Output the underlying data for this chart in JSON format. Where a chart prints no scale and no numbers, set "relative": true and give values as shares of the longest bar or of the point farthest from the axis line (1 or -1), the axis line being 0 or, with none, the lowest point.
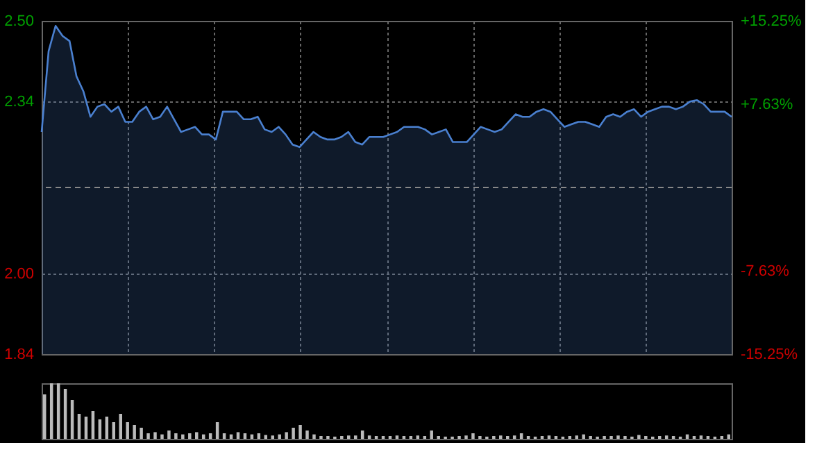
{
  "chart_data": [
    {
      "type": "area",
      "categories": [
        null,
        null,
        null,
        null,
        null,
        null,
        null,
        null,
        null,
        null,
        null,
        null,
        null,
        null,
        null,
        null,
        null,
        null,
        null,
        null,
        null,
        null,
        null,
        null,
        null,
        null,
        null,
        null,
        null,
        null,
        null,
        null,
        null,
        null,
        null,
        null,
        null,
        null,
        null,
        null,
        null,
        null,
        null,
        null,
        null,
        null,
        null,
        null,
        null,
        null,
        null,
        null,
        null,
        null,
        null,
        null,
        null,
        null,
        null,
        null,
        null,
        null,
        null,
        null,
        null,
        null,
        null,
        null,
        null,
        null,
        null,
        null,
        null,
        null,
        null,
        null,
        null,
        null,
        null,
        null,
        null,
        null,
        null,
        null,
        null,
        null,
        null,
        null,
        null,
        null,
        null,
        null,
        null,
        null,
        null,
        null,
        null,
        null,
        null,
        null
      ],
      "series": [
        {
          "color": "#4a80d0",
          "values": [
            2.28,
            2.44,
            2.49,
            2.47,
            2.46,
            2.39,
            2.36,
            2.31,
            2.33,
            2.335,
            2.32,
            2.33,
            2.3,
            2.3,
            2.32,
            2.33,
            2.305,
            2.31,
            2.33,
            2.305,
            2.28,
            2.285,
            2.29,
            2.275,
            2.275,
            2.265,
            2.32,
            2.32,
            2.32,
            2.305,
            2.305,
            2.31,
            2.285,
            2.28,
            2.29,
            2.275,
            2.255,
            2.25,
            2.265,
            2.28,
            2.27,
            2.265,
            2.265,
            2.27,
            2.28,
            2.26,
            2.255,
            2.27,
            2.27,
            2.27,
            2.275,
            2.28,
            2.29,
            2.29,
            2.29,
            2.285,
            2.275,
            2.28,
            2.285,
            2.26,
            2.26,
            2.26,
            2.275,
            2.29,
            2.285,
            2.28,
            2.285,
            2.3,
            2.315,
            2.31,
            2.31,
            2.32,
            2.325,
            2.32,
            2.305,
            2.29,
            2.295,
            2.3,
            2.3,
            2.295,
            2.29,
            2.31,
            2.315,
            2.31,
            2.32,
            2.325,
            2.31,
            2.32,
            2.325,
            2.33,
            2.33,
            2.325,
            2.33,
            2.34,
            2.343,
            2.335,
            2.32,
            2.32,
            2.32,
            2.31
          ]
        }
      ],
      "ylim": [
        1.84,
        2.5
      ],
      "yticks": [
        {
          "value": 1.84,
          "label": "1.84"
        },
        {
          "value": 2.0,
          "label": "2.00"
        },
        {
          "value": 2.34,
          "label": "2.34"
        },
        {
          "value": 2.5,
          "label": "2.50"
        }
      ],
      "y2lim": [
        -15.25,
        15.25
      ],
      "y2ticks": [
        {
          "value": -15.25,
          "label": "-15.25%"
        },
        {
          "value": -7.63,
          "label": "-7.63%"
        },
        {
          "value": 7.63,
          "label": "+7.63%"
        },
        {
          "value": 15.25,
          "label": "+15.25%"
        }
      ],
      "ref_lines": [
        {
          "axis": "y2",
          "value": 0,
          "line_style": "dashed",
          "color": "#888888"
        }
      ],
      "grid": true,
      "tick_labels": "y"
    },
    {
      "type": "bar",
      "relative": true,
      "categories": [
        null,
        null,
        null,
        null,
        null,
        null,
        null,
        null,
        null,
        null,
        null,
        null,
        null,
        null,
        null,
        null,
        null,
        null,
        null,
        null,
        null,
        null,
        null,
        null,
        null,
        null,
        null,
        null,
        null,
        null,
        null,
        null,
        null,
        null,
        null,
        null,
        null,
        null,
        null,
        null,
        null,
        null,
        null,
        null,
        null,
        null,
        null,
        null,
        null,
        null,
        null,
        null,
        null,
        null,
        null,
        null,
        null,
        null,
        null,
        null,
        null,
        null,
        null,
        null,
        null,
        null,
        null,
        null,
        null,
        null,
        null,
        null,
        null,
        null,
        null,
        null,
        null,
        null,
        null,
        null,
        null,
        null,
        null,
        null,
        null,
        null,
        null,
        null,
        null,
        null,
        null,
        null,
        null,
        null,
        null,
        null,
        null,
        null,
        null,
        null
      ],
      "series": [
        {
          "color": "#bbbbbb",
          "values": [
            0.8,
            1.0,
            1.0,
            0.9,
            0.7,
            0.45,
            0.4,
            0.5,
            0.35,
            0.4,
            0.3,
            0.45,
            0.3,
            0.25,
            0.2,
            0.1,
            0.12,
            0.08,
            0.15,
            0.1,
            0.08,
            0.1,
            0.12,
            0.08,
            0.1,
            0.3,
            0.1,
            0.08,
            0.12,
            0.1,
            0.08,
            0.1,
            0.07,
            0.06,
            0.08,
            0.12,
            0.2,
            0.25,
            0.15,
            0.08,
            0.05,
            0.05,
            0.04,
            0.05,
            0.06,
            0.06,
            0.15,
            0.06,
            0.05,
            0.05,
            0.05,
            0.06,
            0.05,
            0.05,
            0.06,
            0.05,
            0.15,
            0.05,
            0.04,
            0.04,
            0.05,
            0.06,
            0.1,
            0.05,
            0.04,
            0.05,
            0.06,
            0.05,
            0.06,
            0.1,
            0.05,
            0.04,
            0.05,
            0.06,
            0.05,
            0.04,
            0.05,
            0.06,
            0.08,
            0.05,
            0.04,
            0.05,
            0.05,
            0.06,
            0.05,
            0.04,
            0.07,
            0.05,
            0.04,
            0.05,
            0.06,
            0.05,
            0.04,
            0.08,
            0.05,
            0.06,
            0.05,
            0.04,
            0.05,
            0.08
          ]
        }
      ],
      "grid": false
    }
  ]
}
